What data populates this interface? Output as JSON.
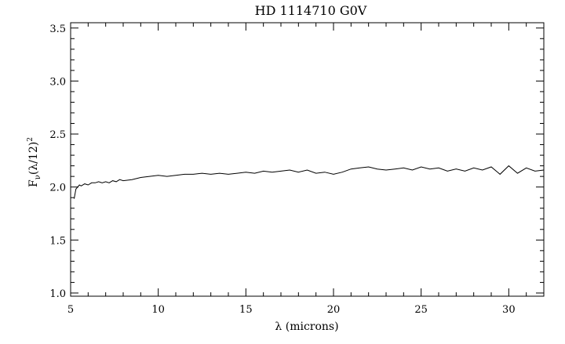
{
  "chart_data": {
    "type": "line",
    "title": "HD 1114710 G0V",
    "xlabel": "λ (microns)",
    "ylabel": "Fν(λ/12)²",
    "ylabel_main": "F",
    "ylabel_sub": "ν",
    "ylabel_mid": "(λ/12)",
    "ylabel_sup": "2",
    "xlim": [
      5,
      32
    ],
    "ylim": [
      0.97,
      3.55
    ],
    "xticks": [
      5,
      10,
      15,
      20,
      25,
      30
    ],
    "xtick_labels": [
      "5",
      "10",
      "15",
      "20",
      "25",
      "30"
    ],
    "yticks": [
      1.0,
      1.5,
      2.0,
      2.5,
      3.0,
      3.5
    ],
    "ytick_labels": [
      "1.0",
      "1.5",
      "2.0",
      "2.5",
      "3.0",
      "3.5"
    ],
    "grid": false,
    "series": [
      {
        "color": "#000000",
        "x": [
          5.2,
          5.3,
          5.4,
          5.5,
          5.6,
          5.8,
          6.0,
          6.2,
          6.4,
          6.6,
          6.8,
          7.0,
          7.2,
          7.4,
          7.6,
          7.8,
          8.0,
          8.5,
          9.0,
          9.5,
          10.0,
          10.5,
          11.0,
          11.5,
          12.0,
          12.5,
          13.0,
          13.5,
          14.0,
          14.5,
          15.0,
          15.5,
          16.0,
          16.5,
          17.0,
          17.5,
          18.0,
          18.5,
          19.0,
          19.5,
          20.0,
          20.5,
          21.0,
          21.5,
          22.0,
          22.5,
          23.0,
          23.5,
          24.0,
          24.5,
          25.0,
          25.5,
          26.0,
          26.5,
          27.0,
          27.5,
          28.0,
          28.5,
          29.0,
          29.5,
          30.0,
          30.5,
          31.0,
          31.5,
          32.0
        ],
        "y": [
          1.89,
          1.98,
          2.0,
          2.02,
          2.01,
          2.03,
          2.02,
          2.04,
          2.04,
          2.05,
          2.04,
          2.05,
          2.04,
          2.06,
          2.05,
          2.07,
          2.06,
          2.07,
          2.09,
          2.1,
          2.11,
          2.1,
          2.11,
          2.12,
          2.12,
          2.13,
          2.12,
          2.13,
          2.12,
          2.13,
          2.14,
          2.13,
          2.15,
          2.14,
          2.15,
          2.16,
          2.14,
          2.16,
          2.13,
          2.14,
          2.12,
          2.14,
          2.17,
          2.18,
          2.19,
          2.17,
          2.16,
          2.17,
          2.18,
          2.16,
          2.19,
          2.17,
          2.18,
          2.15,
          2.17,
          2.15,
          2.18,
          2.16,
          2.19,
          2.12,
          2.2,
          2.13,
          2.18,
          2.15,
          2.16
        ]
      }
    ]
  }
}
